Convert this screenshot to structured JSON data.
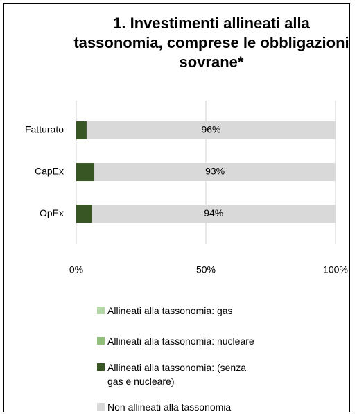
{
  "chart_data": {
    "type": "stacked-barh",
    "title": "1. Investimenti allineati alla tassonomia, comprese le obbligazioni sovrane*",
    "categories": [
      "Fatturato",
      "CapEx",
      "OpEx"
    ],
    "series": [
      {
        "name": "Allineati alla tassonomia: gas",
        "color": "#b5d9a6",
        "values": [
          0,
          0,
          0
        ]
      },
      {
        "name": "Allineati alla tassonomia: nucleare",
        "color": "#8fbf78",
        "values": [
          0,
          0,
          0
        ]
      },
      {
        "name": "Allineati alla tassonomia: (senza gas e nucleare)",
        "color": "#375623",
        "values": [
          4,
          7,
          6
        ]
      },
      {
        "name": "Non allineati alla tassonomia",
        "color": "#d9d9d9",
        "values": [
          96,
          93,
          94
        ],
        "value_labels": [
          "96%",
          "93%",
          "94%"
        ]
      }
    ],
    "xlim": [
      0,
      100
    ],
    "xticks": [
      {
        "value": 0,
        "label": "0%"
      },
      {
        "value": 50,
        "label": "50%"
      },
      {
        "value": 100,
        "label": "100%"
      }
    ],
    "grid": true
  }
}
